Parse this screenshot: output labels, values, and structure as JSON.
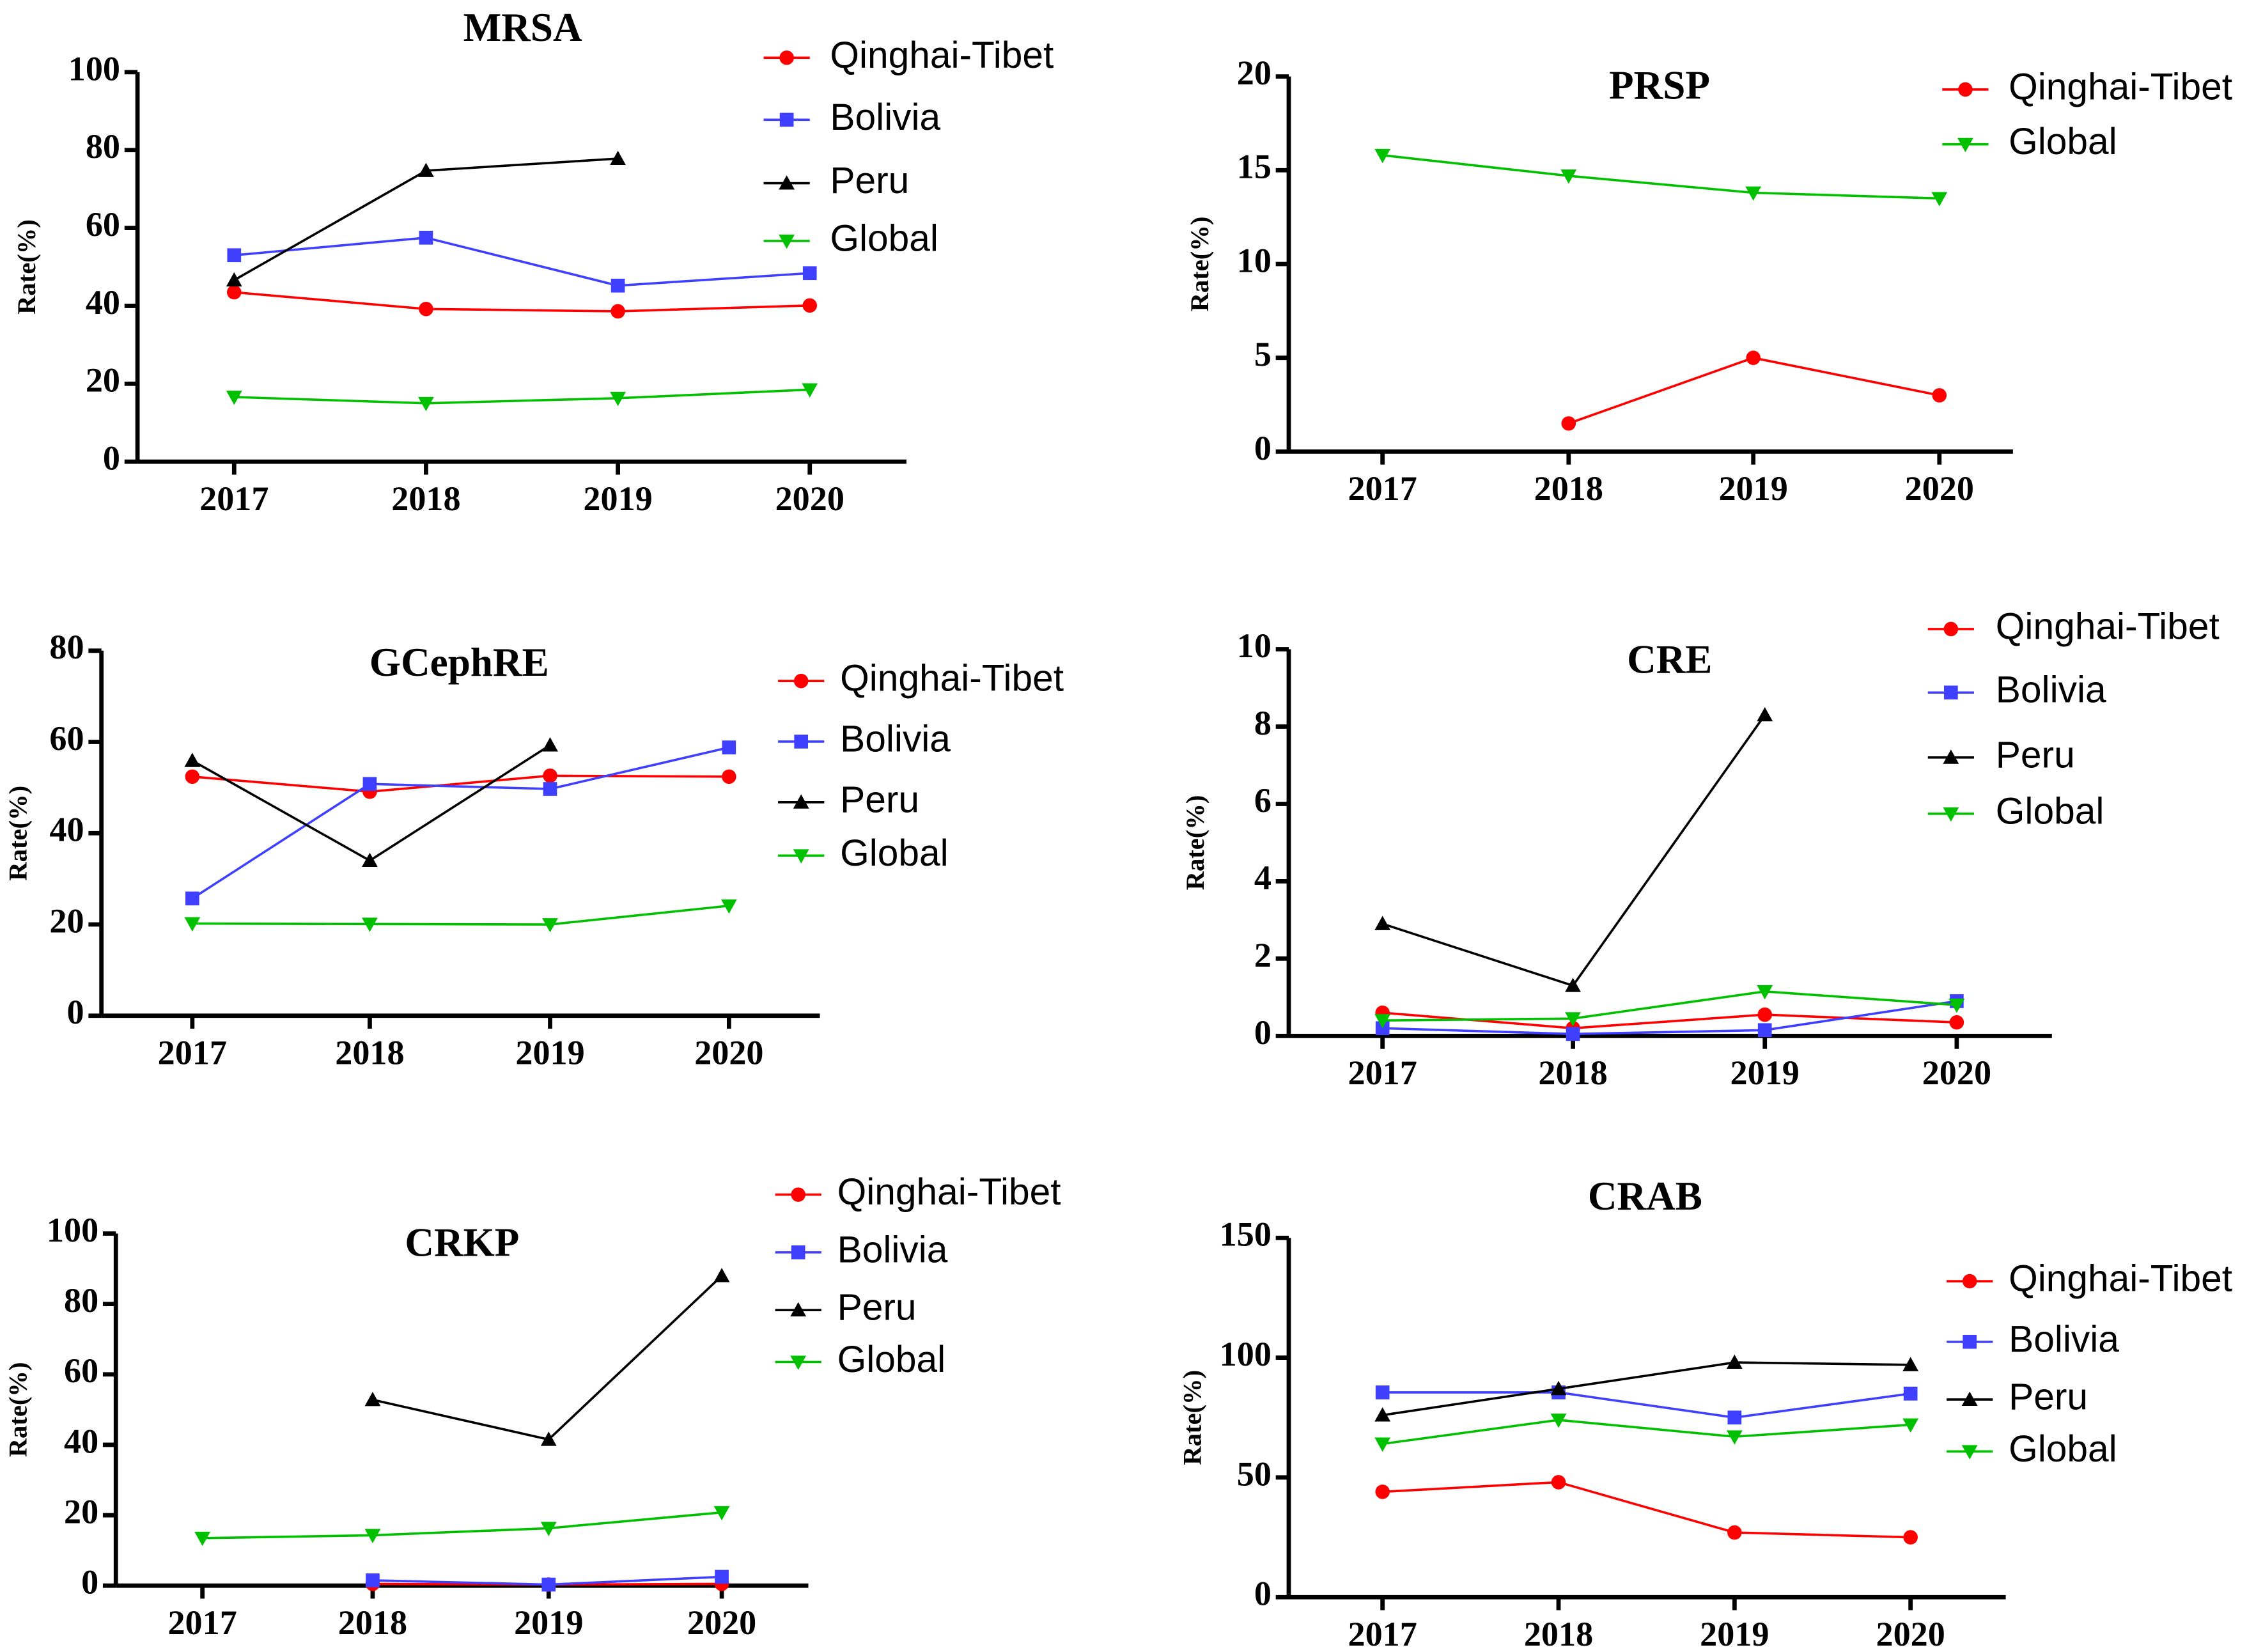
{
  "chart_data": [
    {
      "type": "line",
      "title": "MRSA",
      "y_label": "Rate(%)",
      "categories": [
        "2017",
        "2018",
        "2019",
        "2020"
      ],
      "ylim": [
        0,
        100
      ],
      "yticks": [
        0,
        20,
        40,
        60,
        80,
        100
      ],
      "series": [
        {
          "name": "Qinghai-Tibet",
          "color": "#ff0000",
          "marker": "circle",
          "values": [
            43.5,
            39.2,
            38.6,
            40.1
          ]
        },
        {
          "name": "Bolivia",
          "color": "#3f3fff",
          "marker": "square",
          "values": [
            53,
            57.5,
            45.2,
            48.4
          ]
        },
        {
          "name": "Peru",
          "color": "#000000",
          "marker": "triangle-up",
          "values": [
            46.6,
            74.7,
            77.8,
            null
          ]
        },
        {
          "name": "Global",
          "color": "#00c000",
          "marker": "triangle-down",
          "values": [
            16.6,
            15.0,
            16.3,
            18.5
          ]
        }
      ]
    },
    {
      "type": "line",
      "title": "PRSP",
      "y_label": "Rate(%)",
      "categories": [
        "2017",
        "2018",
        "2019",
        "2020"
      ],
      "ylim": [
        0,
        20
      ],
      "yticks": [
        0,
        5,
        10,
        15,
        20
      ],
      "series": [
        {
          "name": "Qinghai-Tibet",
          "color": "#ff0000",
          "marker": "circle",
          "values": [
            null,
            1.5,
            5.0,
            3.0
          ]
        },
        {
          "name": "Global",
          "color": "#00c000",
          "marker": "triangle-down",
          "values": [
            15.8,
            14.7,
            13.8,
            13.5
          ]
        }
      ]
    },
    {
      "type": "line",
      "title": "GCephRE",
      "y_label": "Rate(%)",
      "categories": [
        "2017",
        "2018",
        "2019",
        "2020"
      ],
      "ylim": [
        0,
        80
      ],
      "yticks": [
        0,
        20,
        40,
        60,
        80
      ],
      "series": [
        {
          "name": "Qinghai-Tibet",
          "color": "#ff0000",
          "marker": "circle",
          "values": [
            52.4,
            49.1,
            52.6,
            52.4
          ]
        },
        {
          "name": "Bolivia",
          "color": "#3f3fff",
          "marker": "square",
          "values": [
            25.7,
            50.8,
            49.7,
            58.8
          ]
        },
        {
          "name": "Peru",
          "color": "#000000",
          "marker": "triangle-up",
          "values": [
            55.9,
            34.0,
            59.3,
            null
          ]
        },
        {
          "name": "Global",
          "color": "#00c000",
          "marker": "triangle-down",
          "values": [
            20.2,
            20.1,
            20.0,
            24.1
          ]
        }
      ]
    },
    {
      "type": "line",
      "title": "CRE",
      "y_label": "Rate(%)",
      "categories": [
        "2017",
        "2018",
        "2019",
        "2020"
      ],
      "ylim": [
        0,
        10
      ],
      "yticks": [
        0,
        2,
        4,
        6,
        8,
        10
      ],
      "series": [
        {
          "name": "Qinghai-Tibet",
          "color": "#ff0000",
          "marker": "circle",
          "values": [
            0.6,
            0.2,
            0.55,
            0.35
          ]
        },
        {
          "name": "Bolivia",
          "color": "#3f3fff",
          "marker": "square",
          "values": [
            0.2,
            0.05,
            0.15,
            0.9
          ]
        },
        {
          "name": "Peru",
          "color": "#000000",
          "marker": "triangle-up",
          "values": [
            2.9,
            1.3,
            8.3,
            null
          ]
        },
        {
          "name": "Global",
          "color": "#00c000",
          "marker": "triangle-down",
          "values": [
            0.4,
            0.45,
            1.15,
            0.8
          ]
        }
      ]
    },
    {
      "type": "line",
      "title": "CRKP",
      "y_label": "Rate(%)",
      "categories": [
        "2017",
        "2018",
        "2019",
        "2020"
      ],
      "ylim": [
        0,
        100
      ],
      "yticks": [
        0,
        20,
        40,
        60,
        80,
        100
      ],
      "series": [
        {
          "name": "Qinghai-Tibet",
          "color": "#ff0000",
          "marker": "circle",
          "values": [
            null,
            0.5,
            0.3,
            0.5
          ]
        },
        {
          "name": "Bolivia",
          "color": "#3f3fff",
          "marker": "square",
          "values": [
            null,
            1.5,
            0.3,
            2.5
          ]
        },
        {
          "name": "Peru",
          "color": "#000000",
          "marker": "triangle-up",
          "values": [
            null,
            52.8,
            41.5,
            88.0
          ]
        },
        {
          "name": "Global",
          "color": "#00c000",
          "marker": "triangle-down",
          "values": [
            13.5,
            14.3,
            16.3,
            20.8
          ]
        }
      ]
    },
    {
      "type": "line",
      "title": "CRAB",
      "y_label": "Rate(%)",
      "categories": [
        "2017",
        "2018",
        "2019",
        "2020"
      ],
      "ylim": [
        0,
        150
      ],
      "yticks": [
        0,
        50,
        100,
        150
      ],
      "series": [
        {
          "name": "Qinghai-Tibet",
          "color": "#ff0000",
          "marker": "circle",
          "values": [
            44,
            48,
            27,
            25
          ]
        },
        {
          "name": "Bolivia",
          "color": "#3f3fff",
          "marker": "square",
          "values": [
            85.5,
            85.5,
            75,
            85
          ]
        },
        {
          "name": "Peru",
          "color": "#000000",
          "marker": "triangle-up",
          "values": [
            76,
            87,
            98,
            97
          ]
        },
        {
          "name": "Global",
          "color": "#00c000",
          "marker": "triangle-down",
          "values": [
            64,
            74,
            67,
            72
          ]
        }
      ]
    }
  ]
}
